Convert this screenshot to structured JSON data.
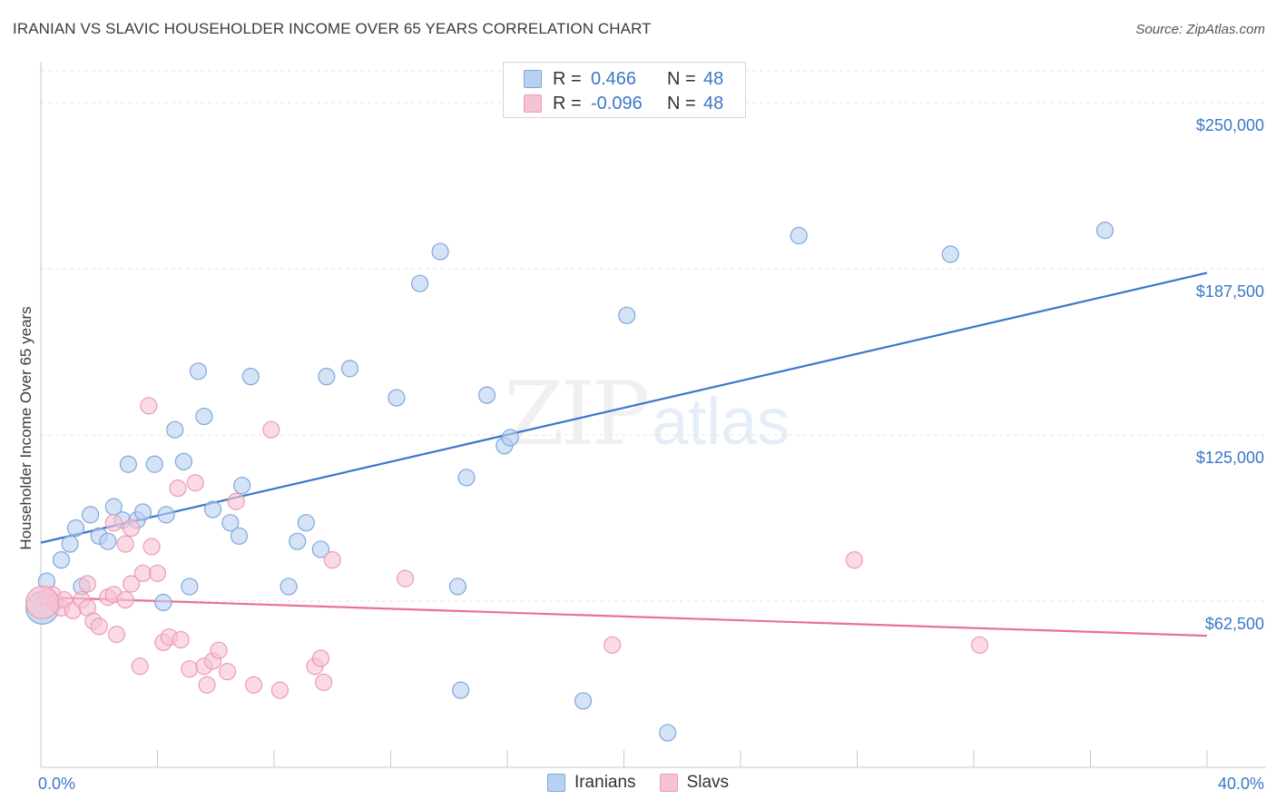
{
  "title": "IRANIAN VS SLAVIC HOUSEHOLDER INCOME OVER 65 YEARS CORRELATION CHART",
  "source": "Source: ZipAtlas.com",
  "watermark": {
    "zip": "ZIP",
    "atlas": "atlas"
  },
  "colors": {
    "blue": "#3a78c8",
    "blue_fill": "#b9d1f0",
    "blue_stroke": "#7fa7dc",
    "pink": "#e8709a",
    "pink_fill": "#f6c3d3",
    "pink_stroke": "#ee9ab5",
    "grid": "#e3e3e3",
    "axis": "#c9c9c9"
  },
  "legend": {
    "rows": [
      {
        "r_label": "R =",
        "r_value": "0.466",
        "n_label": "N =",
        "n_value": "48",
        "series": "Iranians"
      },
      {
        "r_label": "R =",
        "r_value": "-0.096",
        "n_label": "N =",
        "n_value": "48",
        "series": "Slavs"
      }
    ]
  },
  "bottom_legend": [
    "Iranians",
    "Slavs"
  ],
  "chart_data": {
    "type": "scatter",
    "title": "IRANIAN VS SLAVIC HOUSEHOLDER INCOME OVER 65 YEARS CORRELATION CHART",
    "xlabel": "",
    "ylabel": "Householder Income Over 65 years",
    "xlim": [
      0,
      40
    ],
    "ylim": [
      0,
      262000
    ],
    "x_tick_labels": {
      "left": "0.0%",
      "right": "40.0%"
    },
    "y_ticks": [
      {
        "value": 62500,
        "label": "$62,500"
      },
      {
        "value": 125000,
        "label": "$125,000"
      },
      {
        "value": 187500,
        "label": "$187,500"
      },
      {
        "value": 250000,
        "label": "$250,000"
      }
    ],
    "grid": true,
    "legend_position": "top-center",
    "series": [
      {
        "name": "Iranians",
        "color": "#3a78c8",
        "trend": {
          "x": [
            0,
            40
          ],
          "y": [
            84500,
            186000
          ]
        },
        "points": [
          [
            0.7,
            78000
          ],
          [
            1.0,
            84000
          ],
          [
            1.2,
            90000
          ],
          [
            1.4,
            68000
          ],
          [
            1.7,
            95000
          ],
          [
            2.0,
            87000
          ],
          [
            2.3,
            85000
          ],
          [
            2.5,
            98000
          ],
          [
            2.8,
            93000
          ],
          [
            3.0,
            114000
          ],
          [
            3.3,
            93000
          ],
          [
            3.5,
            96000
          ],
          [
            3.9,
            114000
          ],
          [
            4.3,
            95000
          ],
          [
            4.6,
            127000
          ],
          [
            4.9,
            115000
          ],
          [
            5.4,
            149000
          ],
          [
            5.6,
            132000
          ],
          [
            5.1,
            68000
          ],
          [
            4.2,
            62000
          ],
          [
            5.9,
            97000
          ],
          [
            6.5,
            92000
          ],
          [
            6.8,
            87000
          ],
          [
            6.9,
            106000
          ],
          [
            7.2,
            147000
          ],
          [
            8.5,
            68000
          ],
          [
            8.8,
            85000
          ],
          [
            9.1,
            92000
          ],
          [
            9.6,
            82000
          ],
          [
            9.8,
            147000
          ],
          [
            10.6,
            150000
          ],
          [
            12.2,
            139000
          ],
          [
            13.0,
            182000
          ],
          [
            13.7,
            194000
          ],
          [
            14.3,
            68000
          ],
          [
            14.4,
            29000
          ],
          [
            14.6,
            109000
          ],
          [
            15.3,
            140000
          ],
          [
            15.9,
            121000
          ],
          [
            16.1,
            124000
          ],
          [
            18.6,
            25000
          ],
          [
            20.1,
            170000
          ],
          [
            21.5,
            13000
          ],
          [
            26.0,
            200000
          ],
          [
            31.2,
            193000
          ],
          [
            36.5,
            202000
          ],
          [
            0.2,
            70000
          ],
          [
            0.05,
            60000
          ]
        ]
      },
      {
        "name": "Slavs",
        "color": "#e8709a",
        "trend": {
          "x": [
            0,
            40
          ],
          "y": [
            64000,
            49500
          ]
        },
        "points": [
          [
            0.2,
            64000
          ],
          [
            0.4,
            65000
          ],
          [
            0.5,
            62000
          ],
          [
            0.7,
            60000
          ],
          [
            0.8,
            63000
          ],
          [
            1.1,
            59000
          ],
          [
            1.4,
            63000
          ],
          [
            1.6,
            60000
          ],
          [
            1.6,
            69000
          ],
          [
            1.8,
            55000
          ],
          [
            2.0,
            53000
          ],
          [
            2.3,
            64000
          ],
          [
            2.5,
            65000
          ],
          [
            2.5,
            92000
          ],
          [
            2.6,
            50000
          ],
          [
            2.9,
            63000
          ],
          [
            2.9,
            84000
          ],
          [
            3.1,
            90000
          ],
          [
            3.1,
            69000
          ],
          [
            3.4,
            38000
          ],
          [
            3.5,
            73000
          ],
          [
            3.7,
            136000
          ],
          [
            3.8,
            83000
          ],
          [
            4.0,
            73000
          ],
          [
            4.2,
            47000
          ],
          [
            4.4,
            49000
          ],
          [
            4.7,
            105000
          ],
          [
            4.8,
            48000
          ],
          [
            5.1,
            37000
          ],
          [
            5.3,
            107000
          ],
          [
            5.6,
            38000
          ],
          [
            5.7,
            31000
          ],
          [
            5.9,
            40000
          ],
          [
            6.1,
            44000
          ],
          [
            6.4,
            36000
          ],
          [
            6.7,
            100000
          ],
          [
            7.3,
            31000
          ],
          [
            7.9,
            127000
          ],
          [
            8.2,
            29000
          ],
          [
            9.4,
            38000
          ],
          [
            9.6,
            41000
          ],
          [
            9.7,
            32000
          ],
          [
            10.0,
            78000
          ],
          [
            12.5,
            71000
          ],
          [
            19.6,
            46000
          ],
          [
            27.9,
            78000
          ],
          [
            32.2,
            46000
          ],
          [
            0.05,
            62000
          ]
        ]
      }
    ]
  }
}
